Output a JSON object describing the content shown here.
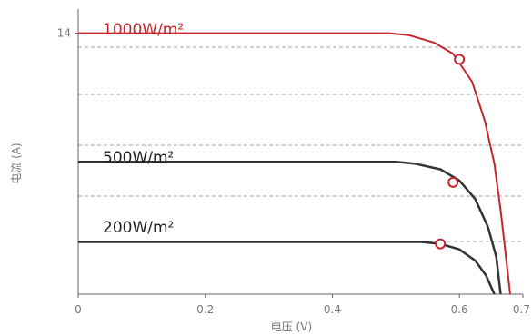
{
  "chart_data": {
    "type": "line",
    "xlabel": "电压 (V)",
    "ylabel": "电流 (A)",
    "xlim": [
      0,
      0.7
    ],
    "ylim": [
      0,
      15.2
    ],
    "x_ticks": [
      "0",
      "0.2",
      "0.4",
      "0.6",
      "0.7"
    ],
    "y_ticks": [
      "14"
    ],
    "grid": "horizontal dashed",
    "series": [
      {
        "name": "1000W/m²",
        "color": "#c8242b",
        "isc": 14.0,
        "voc": 0.68,
        "points": [
          [
            0,
            14.0
          ],
          [
            0.49,
            14.0
          ],
          [
            0.52,
            13.9
          ],
          [
            0.56,
            13.5
          ],
          [
            0.59,
            12.9
          ],
          [
            0.62,
            11.4
          ],
          [
            0.64,
            9.3
          ],
          [
            0.655,
            7.0
          ],
          [
            0.665,
            4.5
          ],
          [
            0.675,
            1.5
          ],
          [
            0.68,
            0
          ]
        ],
        "mpp": [
          0.6,
          12.6
        ]
      },
      {
        "name": "500W/m²",
        "color": "#333333",
        "isc": 7.1,
        "voc": 0.665,
        "points": [
          [
            0,
            7.1
          ],
          [
            0.5,
            7.1
          ],
          [
            0.53,
            7.0
          ],
          [
            0.57,
            6.7
          ],
          [
            0.6,
            6.1
          ],
          [
            0.625,
            5.1
          ],
          [
            0.645,
            3.6
          ],
          [
            0.658,
            2.0
          ],
          [
            0.665,
            0
          ]
        ],
        "mpp": [
          0.59,
          6.0
        ]
      },
      {
        "name": "200W/m²",
        "color": "#333333",
        "isc": 2.8,
        "voc": 0.655,
        "points": [
          [
            0,
            2.8
          ],
          [
            0.54,
            2.8
          ],
          [
            0.57,
            2.7
          ],
          [
            0.6,
            2.4
          ],
          [
            0.625,
            1.8
          ],
          [
            0.642,
            1.0
          ],
          [
            0.655,
            0
          ]
        ],
        "mpp": [
          0.57,
          2.7
        ]
      }
    ]
  }
}
